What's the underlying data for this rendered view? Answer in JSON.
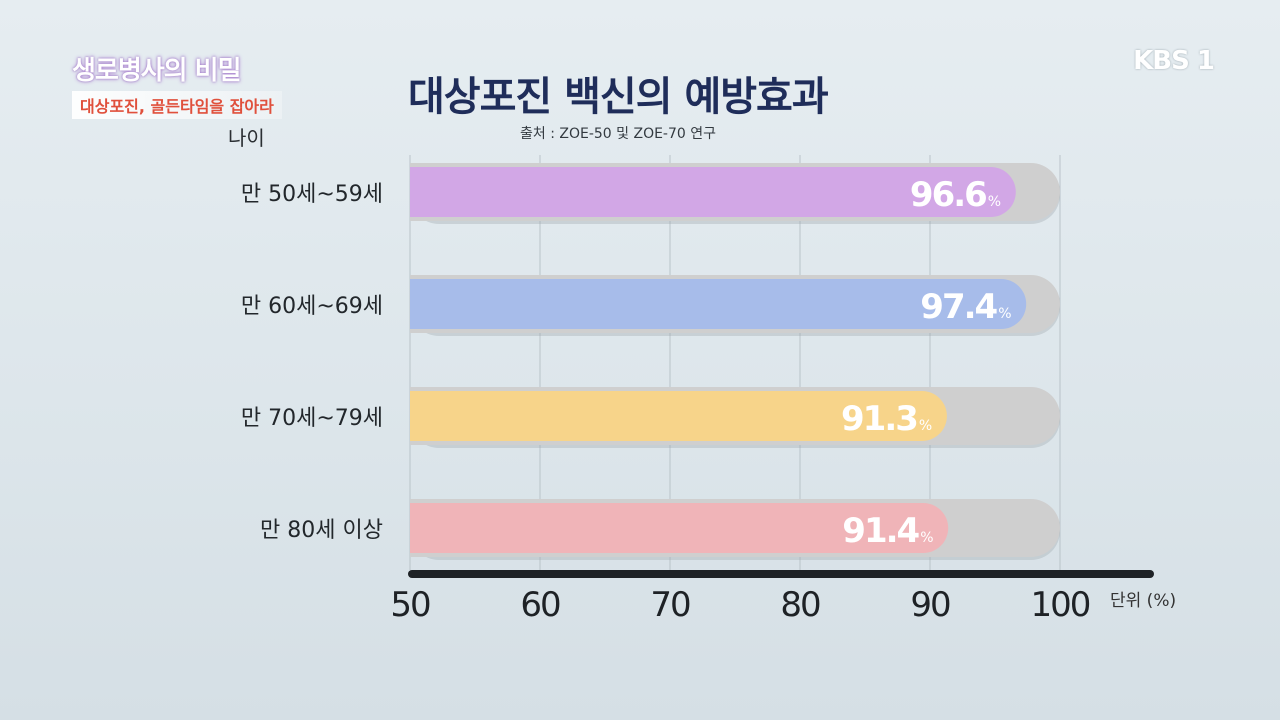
{
  "header": {
    "logo_title": "생로병사의 비밀",
    "logo_subtitle": "대상포진, 골든타임을 잡아라",
    "channel": "KBS 1"
  },
  "chart_data": {
    "type": "bar",
    "orientation": "horizontal",
    "title": "대상포진 백신의 예방효과",
    "subtitle": "출처 : ZOE-50 및 ZOE-70 연구",
    "ylabel": "나이",
    "unit_label": "단위 (%)",
    "categories": [
      "만 50세~59세",
      "만 60세~69세",
      "만 70세~79세",
      "만 80세 이상"
    ],
    "values": [
      96.6,
      97.4,
      91.3,
      91.4
    ],
    "value_suffix": "%",
    "xlim": [
      50,
      100
    ],
    "xticks": [
      50,
      60,
      70,
      80,
      90,
      100
    ],
    "grid": true,
    "colors": [
      "#d2a7e6",
      "#a7bcea",
      "#f7d48a",
      "#f0b4b8"
    ],
    "track_color": "#cfcfcf"
  }
}
